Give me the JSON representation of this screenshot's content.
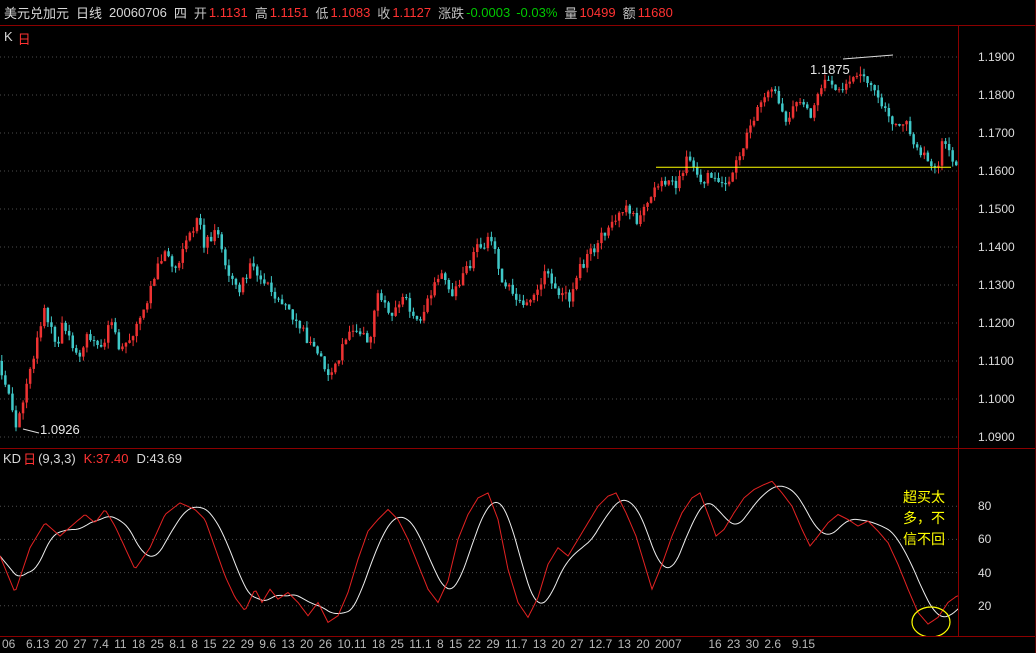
{
  "colors": {
    "background": "#000000",
    "frame": "#8b0000",
    "up": "#ee3232",
    "down": "#3fc8c8",
    "grid": "#4d4d4d",
    "value_red": "#ff3232",
    "value_green": "#00c800",
    "annotation_yellow": "#ffff00",
    "k_line": "#e42222",
    "d_line": "#eeeeee"
  },
  "titlebar": {
    "symbol": "美元兑加元",
    "period": "日线",
    "date": "20060706",
    "weekday": "四",
    "open_label": "开",
    "open": "1.1131",
    "high_label": "高",
    "high": "1.1151",
    "low_label": "低",
    "low": "1.1083",
    "close_label": "收",
    "close": "1.1127",
    "change_label": "涨跌",
    "change": "-0.0003",
    "change_pct": "-0.03%",
    "volume_label": "量",
    "volume": "10499",
    "amount_label": "额",
    "amount": "11680"
  },
  "main_chart": {
    "indicator_label_k": "K",
    "indicator_label_period": "日"
  },
  "kd_panel": {
    "title": "KD",
    "period_label": "日",
    "params": "(9,3,3)",
    "k_value": "K:37.40",
    "d_value": "D:43.69",
    "note": "超买太多，不信不回"
  },
  "chart_data": [
    {
      "type": "candlestick",
      "name": "美元兑加元 日线 (USD/CAD daily)",
      "y_min": 1.09,
      "y_max": 1.19,
      "y_tick_labels": [
        "1.1900",
        "1.1800",
        "1.1700",
        "1.1600",
        "1.1500",
        "1.1400",
        "1.1300",
        "1.1200",
        "1.1100",
        "1.1000",
        "1.0900"
      ],
      "x_axis_labels": "06  6.13 20 27 7.4 11 18 25 8.1 8 15 22 29 9.6 13 20 26 10.11 18 25 11.1 8 15 22 29 11.7 13 20 27 12.7 13 20 2007     16 23 30 2.6  9.15",
      "num_candles": 270,
      "low_point": {
        "index": 5,
        "price": 1.0926,
        "label": "1.0926"
      },
      "high_point": {
        "index": 242,
        "price": 1.1875,
        "label": "1.1875"
      },
      "support_line": {
        "price": 1.161,
        "from_index": 185,
        "to_index": 268
      },
      "price_path": [
        [
          0,
          1.11
        ],
        [
          2,
          1.103
        ],
        [
          5,
          1.0926
        ],
        [
          8,
          1.105
        ],
        [
          13,
          1.124
        ],
        [
          16,
          1.113
        ],
        [
          18,
          1.12
        ],
        [
          22,
          1.11
        ],
        [
          25,
          1.118
        ],
        [
          28,
          1.1127
        ],
        [
          32,
          1.121
        ],
        [
          34,
          1.113
        ],
        [
          38,
          1.118
        ],
        [
          42,
          1.127
        ],
        [
          47,
          1.141
        ],
        [
          49,
          1.133
        ],
        [
          53,
          1.143
        ],
        [
          56,
          1.147
        ],
        [
          58,
          1.14
        ],
        [
          61,
          1.145
        ],
        [
          64,
          1.134
        ],
        [
          68,
          1.129
        ],
        [
          71,
          1.136
        ],
        [
          74,
          1.131
        ],
        [
          78,
          1.127
        ],
        [
          82,
          1.122
        ],
        [
          86,
          1.117
        ],
        [
          90,
          1.112
        ],
        [
          93,
          1.107
        ],
        [
          96,
          1.112
        ],
        [
          100,
          1.12
        ],
        [
          104,
          1.114
        ],
        [
          107,
          1.128
        ],
        [
          110,
          1.122
        ],
        [
          114,
          1.127
        ],
        [
          118,
          1.12
        ],
        [
          121,
          1.127
        ],
        [
          125,
          1.133
        ],
        [
          128,
          1.128
        ],
        [
          132,
          1.134
        ],
        [
          135,
          1.14
        ],
        [
          139,
          1.142
        ],
        [
          142,
          1.131
        ],
        [
          146,
          1.127
        ],
        [
          149,
          1.124
        ],
        [
          154,
          1.133
        ],
        [
          157,
          1.128
        ],
        [
          161,
          1.126
        ],
        [
          164,
          1.135
        ],
        [
          168,
          1.14
        ],
        [
          172,
          1.146
        ],
        [
          176,
          1.15
        ],
        [
          180,
          1.147
        ],
        [
          184,
          1.154
        ],
        [
          187,
          1.158
        ],
        [
          191,
          1.155
        ],
        [
          194,
          1.165
        ],
        [
          198,
          1.157
        ],
        [
          201,
          1.16
        ],
        [
          205,
          1.156
        ],
        [
          209,
          1.165
        ],
        [
          212,
          1.172
        ],
        [
          215,
          1.178
        ],
        [
          218,
          1.181
        ],
        [
          222,
          1.173
        ],
        [
          225,
          1.18
        ],
        [
          229,
          1.175
        ],
        [
          233,
          1.184
        ],
        [
          236,
          1.18
        ],
        [
          240,
          1.185
        ],
        [
          242,
          1.186
        ],
        [
          246,
          1.183
        ],
        [
          249,
          1.177
        ],
        [
          252,
          1.171
        ],
        [
          255,
          1.174
        ],
        [
          258,
          1.167
        ],
        [
          261,
          1.163
        ],
        [
          264,
          1.16
        ],
        [
          266,
          1.168
        ],
        [
          269,
          1.162
        ]
      ]
    },
    {
      "type": "line",
      "name": "KD 日(9,3,3)",
      "series": [
        {
          "name": "K",
          "color": "#e42222",
          "last_value": 37.4
        },
        {
          "name": "D",
          "color": "#eeeeee",
          "last_value": 43.69
        }
      ],
      "y_ticks": [
        80,
        60,
        40,
        20
      ],
      "k_values_path": [
        [
          0,
          50
        ],
        [
          15,
          28
        ],
        [
          30,
          55
        ],
        [
          45,
          70
        ],
        [
          60,
          62
        ],
        [
          75,
          70
        ],
        [
          85,
          75
        ],
        [
          95,
          70
        ],
        [
          105,
          78
        ],
        [
          115,
          68
        ],
        [
          125,
          55
        ],
        [
          135,
          42
        ],
        [
          150,
          55
        ],
        [
          165,
          75
        ],
        [
          180,
          82
        ],
        [
          195,
          78
        ],
        [
          205,
          72
        ],
        [
          215,
          55
        ],
        [
          225,
          38
        ],
        [
          235,
          25
        ],
        [
          245,
          17
        ],
        [
          255,
          30
        ],
        [
          262,
          22
        ],
        [
          270,
          30
        ],
        [
          278,
          24
        ],
        [
          288,
          28
        ],
        [
          298,
          22
        ],
        [
          308,
          14
        ],
        [
          318,
          22
        ],
        [
          328,
          10
        ],
        [
          338,
          14
        ],
        [
          348,
          28
        ],
        [
          358,
          48
        ],
        [
          368,
          65
        ],
        [
          378,
          72
        ],
        [
          388,
          78
        ],
        [
          398,
          72
        ],
        [
          408,
          60
        ],
        [
          418,
          45
        ],
        [
          428,
          30
        ],
        [
          438,
          22
        ],
        [
          448,
          35
        ],
        [
          458,
          60
        ],
        [
          468,
          75
        ],
        [
          478,
          85
        ],
        [
          488,
          88
        ],
        [
          498,
          72
        ],
        [
          508,
          42
        ],
        [
          518,
          22
        ],
        [
          528,
          13
        ],
        [
          538,
          25
        ],
        [
          548,
          45
        ],
        [
          558,
          55
        ],
        [
          568,
          50
        ],
        [
          578,
          60
        ],
        [
          588,
          70
        ],
        [
          598,
          80
        ],
        [
          608,
          86
        ],
        [
          616,
          88
        ],
        [
          626,
          76
        ],
        [
          636,
          62
        ],
        [
          646,
          42
        ],
        [
          652,
          30
        ],
        [
          662,
          45
        ],
        [
          672,
          62
        ],
        [
          682,
          76
        ],
        [
          692,
          85
        ],
        [
          700,
          88
        ],
        [
          710,
          72
        ],
        [
          716,
          62
        ],
        [
          724,
          66
        ],
        [
          734,
          76
        ],
        [
          744,
          85
        ],
        [
          754,
          90
        ],
        [
          764,
          93
        ],
        [
          772,
          95
        ],
        [
          782,
          88
        ],
        [
          792,
          80
        ],
        [
          802,
          66
        ],
        [
          810,
          56
        ],
        [
          818,
          62
        ],
        [
          828,
          70
        ],
        [
          838,
          75
        ],
        [
          848,
          72
        ],
        [
          858,
          68
        ],
        [
          868,
          71
        ],
        [
          878,
          65
        ],
        [
          888,
          58
        ],
        [
          898,
          45
        ],
        [
          908,
          30
        ],
        [
          918,
          16
        ],
        [
          928,
          9
        ],
        [
          938,
          13
        ],
        [
          948,
          22
        ],
        [
          957,
          26
        ]
      ]
    }
  ]
}
